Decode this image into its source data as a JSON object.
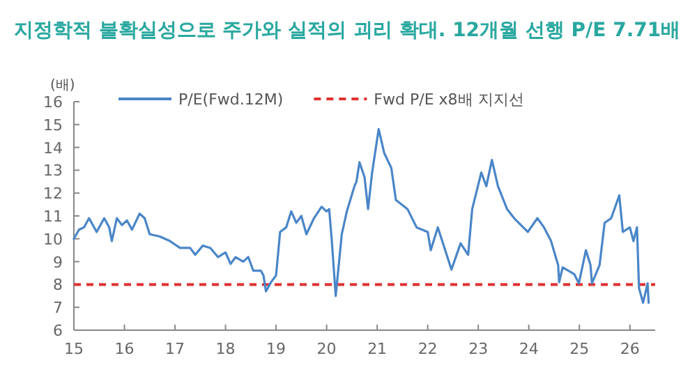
{
  "chart_data": {
    "type": "line",
    "title": "지정학적 불확실성으로 주가와 실적의 괴리 확대. 12개월 선행 P/E 7.71배",
    "ylabel": "(배)",
    "xlim": [
      15,
      26.5
    ],
    "xticks": [
      15,
      16,
      17,
      18,
      19,
      20,
      21,
      22,
      23,
      24,
      25,
      26
    ],
    "ylim": [
      6,
      16
    ],
    "yticks": [
      6,
      7,
      8,
      9,
      10,
      11,
      12,
      13,
      14,
      15,
      16
    ],
    "grid": false,
    "legend": "top",
    "line_style": "solid",
    "marker": "none",
    "series": [
      {
        "name": "P/E(Fwd.12M)",
        "color": "#4a86c8",
        "x": [
          15.0,
          15.1,
          15.2,
          15.3,
          15.45,
          15.6,
          15.7,
          15.75,
          15.85,
          15.95,
          16.05,
          16.15,
          16.3,
          16.4,
          16.5,
          16.7,
          16.9,
          17.1,
          17.3,
          17.4,
          17.55,
          17.7,
          17.85,
          18.0,
          18.1,
          18.2,
          18.35,
          18.45,
          18.55,
          18.7,
          18.75,
          18.8,
          18.9,
          19.0,
          19.08,
          19.2,
          19.3,
          19.4,
          19.5,
          19.6,
          19.75,
          19.9,
          20.0,
          20.05,
          20.1,
          20.18,
          20.3,
          20.4,
          20.55,
          20.59,
          20.65,
          20.75,
          20.82,
          20.9,
          21.03,
          21.14,
          21.28,
          21.37,
          21.6,
          21.78,
          22.0,
          22.06,
          22.2,
          22.47,
          22.65,
          22.8,
          22.88,
          23.06,
          23.16,
          23.27,
          23.39,
          23.57,
          23.71,
          23.98,
          24.17,
          24.3,
          24.44,
          24.58,
          24.6,
          24.67,
          24.9,
          24.99,
          25.13,
          25.22,
          25.25,
          25.4,
          25.5,
          25.63,
          25.79,
          25.86,
          26.0,
          26.07,
          26.14,
          26.18,
          26.26,
          26.35,
          26.37
        ],
        "values": [
          10.0,
          10.4,
          10.5,
          10.9,
          10.3,
          10.9,
          10.5,
          9.9,
          10.9,
          10.6,
          10.8,
          10.4,
          11.1,
          10.9,
          10.2,
          10.1,
          9.9,
          9.6,
          9.6,
          9.3,
          9.7,
          9.6,
          9.2,
          9.4,
          8.9,
          9.2,
          9.0,
          9.2,
          8.6,
          8.6,
          8.4,
          7.7,
          8.1,
          8.4,
          10.3,
          10.5,
          11.2,
          10.7,
          11.0,
          10.2,
          10.9,
          11.4,
          11.2,
          11.3,
          10.0,
          7.5,
          10.2,
          11.2,
          12.3,
          12.5,
          13.35,
          12.7,
          11.3,
          12.9,
          14.8,
          13.75,
          13.1,
          11.7,
          11.3,
          10.5,
          10.3,
          9.5,
          10.5,
          8.65,
          9.8,
          9.3,
          11.3,
          12.9,
          12.3,
          13.45,
          12.3,
          11.3,
          10.9,
          10.3,
          10.9,
          10.5,
          9.9,
          8.85,
          8.1,
          8.75,
          8.45,
          8.05,
          9.5,
          8.85,
          8.05,
          8.85,
          10.7,
          10.9,
          11.9,
          10.3,
          10.5,
          9.9,
          10.5,
          7.85,
          7.2,
          8.05,
          7.2
        ]
      }
    ],
    "ref_lines": [
      {
        "axis": "y",
        "value": 8,
        "label": "Fwd P/E x8배 지지선",
        "color": "#e03030",
        "line_style": "dashed"
      }
    ]
  }
}
